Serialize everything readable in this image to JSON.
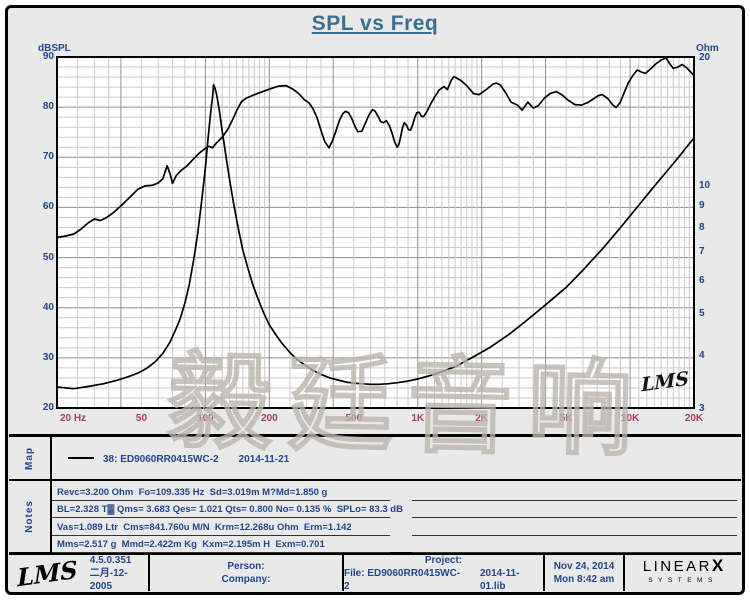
{
  "title": "SPL vs Freq",
  "colors": {
    "title": "#3b6f8f",
    "axis_blue": "#24468c",
    "freq_maroon": "#a84060",
    "grid_minor": "#cacaca",
    "grid_major": "#8f8f8f",
    "curve": "#000000",
    "panel_bg": "#e9e9e9"
  },
  "watermark": "毅廷音响",
  "chart_data": {
    "type": "line",
    "title": "SPL vs Freq",
    "grid": true,
    "plot_watermark": "LMS",
    "x_axis": {
      "scale": "log",
      "min": 20,
      "max": 20000,
      "unit": "Hz",
      "tick_values": [
        20,
        50,
        100,
        200,
        500,
        1000,
        2000,
        5000,
        10000,
        20000
      ],
      "tick_labels": [
        "20 Hz",
        "50",
        "100",
        "200",
        "500",
        "1K",
        "2K",
        "5K",
        "10K",
        "20K"
      ]
    },
    "y_left": {
      "label": "dBSPL",
      "scale": "linear",
      "min": 20,
      "max": 90,
      "minor_step": 2,
      "ticks": [
        90,
        80,
        70,
        60,
        50,
        40,
        30,
        20
      ]
    },
    "y_right": {
      "label": "Ohm",
      "scale": "log",
      "min": 3,
      "max": 20,
      "ticks": [
        20,
        10,
        9,
        8,
        7,
        6,
        5,
        4,
        3
      ]
    },
    "series": [
      {
        "name": "SPL (dBSPL)",
        "axis": "left",
        "color": "#000000",
        "points": [
          [
            20,
            54.0
          ],
          [
            22,
            54.3
          ],
          [
            24,
            54.7
          ],
          [
            26,
            55.7
          ],
          [
            28,
            56.9
          ],
          [
            30,
            57.7
          ],
          [
            32,
            57.4
          ],
          [
            34,
            57.9
          ],
          [
            37,
            59.0
          ],
          [
            40,
            60.3
          ],
          [
            44,
            62.0
          ],
          [
            48,
            63.6
          ],
          [
            52,
            64.3
          ],
          [
            56,
            64.4
          ],
          [
            60,
            64.9
          ],
          [
            63,
            65.7
          ],
          [
            66,
            68.3
          ],
          [
            68,
            66.8
          ],
          [
            70,
            64.8
          ],
          [
            73,
            66.4
          ],
          [
            77,
            67.4
          ],
          [
            82,
            68.3
          ],
          [
            88,
            69.7
          ],
          [
            94,
            70.9
          ],
          [
            100,
            71.8
          ],
          [
            104,
            72.2
          ],
          [
            108,
            71.9
          ],
          [
            113,
            72.9
          ],
          [
            120,
            74.0
          ],
          [
            127,
            75.5
          ],
          [
            134,
            77.4
          ],
          [
            141,
            79.5
          ],
          [
            148,
            81.1
          ],
          [
            156,
            81.8
          ],
          [
            166,
            82.3
          ],
          [
            178,
            82.8
          ],
          [
            192,
            83.3
          ],
          [
            207,
            83.8
          ],
          [
            222,
            84.2
          ],
          [
            240,
            84.3
          ],
          [
            258,
            83.6
          ],
          [
            275,
            82.7
          ],
          [
            292,
            81.5
          ],
          [
            308,
            80.8
          ],
          [
            322,
            79.6
          ],
          [
            336,
            77.8
          ],
          [
            350,
            75.4
          ],
          [
            365,
            73.1
          ],
          [
            382,
            71.9
          ],
          [
            396,
            73.2
          ],
          [
            412,
            75.3
          ],
          [
            428,
            77.4
          ],
          [
            443,
            78.7
          ],
          [
            458,
            79.2
          ],
          [
            472,
            78.9
          ],
          [
            488,
            77.8
          ],
          [
            505,
            76.3
          ],
          [
            522,
            75.1
          ],
          [
            545,
            75.2
          ],
          [
            568,
            76.9
          ],
          [
            590,
            78.5
          ],
          [
            612,
            79.5
          ],
          [
            630,
            79.2
          ],
          [
            650,
            78.2
          ],
          [
            670,
            77.1
          ],
          [
            690,
            76.9
          ],
          [
            712,
            77.3
          ],
          [
            735,
            76.3
          ],
          [
            758,
            74.7
          ],
          [
            780,
            73.0
          ],
          [
            800,
            72.0
          ],
          [
            816,
            72.6
          ],
          [
            832,
            74.2
          ],
          [
            848,
            75.9
          ],
          [
            865,
            76.9
          ],
          [
            885,
            76.4
          ],
          [
            905,
            75.5
          ],
          [
            925,
            75.4
          ],
          [
            945,
            76.4
          ],
          [
            968,
            77.9
          ],
          [
            990,
            78.9
          ],
          [
            1015,
            79.0
          ],
          [
            1040,
            78.2
          ],
          [
            1065,
            78.1
          ],
          [
            1100,
            79.0
          ],
          [
            1150,
            80.6
          ],
          [
            1200,
            82.0
          ],
          [
            1260,
            83.4
          ],
          [
            1330,
            84.1
          ],
          [
            1380,
            83.5
          ],
          [
            1440,
            85.4
          ],
          [
            1480,
            86.1
          ],
          [
            1540,
            85.7
          ],
          [
            1600,
            85.3
          ],
          [
            1700,
            84.3
          ],
          [
            1830,
            82.7
          ],
          [
            1950,
            82.5
          ],
          [
            2100,
            83.5
          ],
          [
            2260,
            84.6
          ],
          [
            2350,
            84.8
          ],
          [
            2450,
            84.4
          ],
          [
            2600,
            82.8
          ],
          [
            2750,
            81.0
          ],
          [
            2950,
            80.4
          ],
          [
            3100,
            79.4
          ],
          [
            3300,
            81.0
          ],
          [
            3500,
            79.8
          ],
          [
            3700,
            80.3
          ],
          [
            3950,
            81.8
          ],
          [
            4200,
            82.7
          ],
          [
            4500,
            83.1
          ],
          [
            4800,
            82.4
          ],
          [
            5100,
            81.4
          ],
          [
            5500,
            80.5
          ],
          [
            5900,
            80.4
          ],
          [
            6300,
            80.9
          ],
          [
            6700,
            81.6
          ],
          [
            7100,
            82.3
          ],
          [
            7400,
            82.5
          ],
          [
            7900,
            81.6
          ],
          [
            8300,
            80.4
          ],
          [
            8600,
            79.9
          ],
          [
            9000,
            81.0
          ],
          [
            9400,
            83.0
          ],
          [
            9800,
            84.8
          ],
          [
            10300,
            86.3
          ],
          [
            10800,
            87.4
          ],
          [
            11300,
            87.0
          ],
          [
            11800,
            86.7
          ],
          [
            12400,
            87.5
          ],
          [
            13200,
            88.6
          ],
          [
            14000,
            89.4
          ],
          [
            14800,
            89.8
          ],
          [
            15400,
            88.6
          ],
          [
            16000,
            87.7
          ],
          [
            16800,
            88.0
          ],
          [
            17600,
            88.5
          ],
          [
            18400,
            87.9
          ],
          [
            19200,
            87.1
          ],
          [
            20000,
            86.3
          ]
        ]
      },
      {
        "name": "Impedance (Ohm)",
        "axis": "right",
        "color": "#000000",
        "points": [
          [
            20,
            3.36
          ],
          [
            24,
            3.33
          ],
          [
            28,
            3.37
          ],
          [
            33,
            3.42
          ],
          [
            38,
            3.48
          ],
          [
            43,
            3.55
          ],
          [
            48,
            3.62
          ],
          [
            53,
            3.72
          ],
          [
            58,
            3.85
          ],
          [
            63,
            4.03
          ],
          [
            68,
            4.28
          ],
          [
            72,
            4.55
          ],
          [
            76,
            4.85
          ],
          [
            80,
            5.28
          ],
          [
            84,
            5.85
          ],
          [
            88,
            6.67
          ],
          [
            92,
            7.7
          ],
          [
            96,
            9.2
          ],
          [
            100,
            11.0
          ],
          [
            103,
            12.9
          ],
          [
            106,
            14.9
          ],
          [
            108,
            16.1
          ],
          [
            109.3,
            17.2
          ],
          [
            111,
            16.9
          ],
          [
            113,
            16.3
          ],
          [
            116,
            15.1
          ],
          [
            120,
            13.4
          ],
          [
            125,
            11.7
          ],
          [
            130,
            10.3
          ],
          [
            136,
            9.0
          ],
          [
            143,
            7.9
          ],
          [
            150,
            7.05
          ],
          [
            158,
            6.42
          ],
          [
            167,
            5.85
          ],
          [
            177,
            5.4
          ],
          [
            188,
            5.02
          ],
          [
            200,
            4.7
          ],
          [
            215,
            4.45
          ],
          [
            230,
            4.25
          ],
          [
            250,
            4.05
          ],
          [
            270,
            3.9
          ],
          [
            295,
            3.78
          ],
          [
            320,
            3.68
          ],
          [
            350,
            3.6
          ],
          [
            385,
            3.53
          ],
          [
            420,
            3.49
          ],
          [
            460,
            3.45
          ],
          [
            500,
            3.43
          ],
          [
            550,
            3.42
          ],
          [
            600,
            3.41
          ],
          [
            660,
            3.41
          ],
          [
            720,
            3.42
          ],
          [
            800,
            3.44
          ],
          [
            900,
            3.47
          ],
          [
            1000,
            3.51
          ],
          [
            1200,
            3.6
          ],
          [
            1500,
            3.75
          ],
          [
            1800,
            3.94
          ],
          [
            2200,
            4.17
          ],
          [
            2700,
            4.47
          ],
          [
            3300,
            4.84
          ],
          [
            4000,
            5.24
          ],
          [
            5000,
            5.76
          ],
          [
            6000,
            6.32
          ],
          [
            7500,
            7.14
          ],
          [
            9000,
            7.95
          ],
          [
            11000,
            8.98
          ],
          [
            13000,
            9.95
          ],
          [
            15000,
            10.83
          ],
          [
            17000,
            11.67
          ],
          [
            19000,
            12.52
          ],
          [
            20000,
            12.9
          ]
        ]
      }
    ]
  },
  "map": {
    "label": "Map",
    "legend": {
      "text": "38: ED9060RR0415WC-2",
      "date": "2014-11-21"
    }
  },
  "notes": {
    "label": "Notes",
    "lines": [
      "Revc=3.200 Ohm  Fo=109.335 Hz  Sd=3.019m M?Md=1.850 g",
      "BL=2.328 T▓ Qms= 3.683 Qes= 1.021 Qts= 0.800 No= 0.135 %  SPLo= 83.3 dB",
      "Vas=1.089 Ltr  Cms=841.760u M/N  Krm=12.268u Ohm  Erm=1.142",
      "Mms=2.517 g  Mmd=2.422m Kg  Kxm=2.195m H  Exm=0.701"
    ]
  },
  "footer": {
    "app": "LMS",
    "version": "4.5.0.351",
    "build_date": "二月-12-2005",
    "person_label": "Person:",
    "company_label": "Company:",
    "project_label": "Project:",
    "file_text": "File: ED9060RR0415WC-2",
    "lib_text": "2014-11-01.lib",
    "date": "Nov 24, 2014",
    "time": "Mon  8:42 am",
    "brand": {
      "main": "LINEAR",
      "x": "X",
      "sub": "SYSTEMS"
    }
  }
}
